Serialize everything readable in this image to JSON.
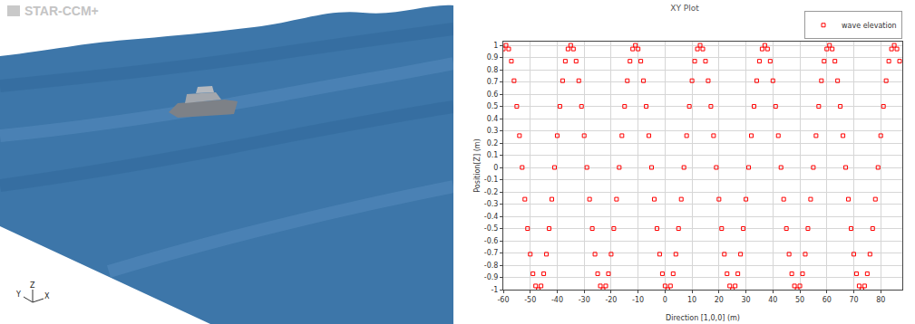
{
  "scene": {
    "logo": "STAR-CCM+",
    "axes_labels": {
      "x": "X",
      "y": "Y",
      "z": "Z"
    }
  },
  "chart_data": {
    "type": "scatter",
    "title": "XY Plot",
    "x_label": "Direction [1,0,0] (m)",
    "y_label": "Position[Z] (m)",
    "series": [
      {
        "name": "wave elevation",
        "color": "#ff0000",
        "marker": "square",
        "x": [
          -60,
          -59,
          -58,
          -57,
          -56,
          -55,
          -54,
          -53,
          -52,
          -51,
          -50,
          -49,
          -48,
          -47,
          -46,
          -45,
          -44,
          -43,
          -42,
          -41,
          -40,
          -39,
          -38,
          -37,
          -36,
          -35,
          -34,
          -33,
          -32,
          -31,
          -30,
          -29,
          -28,
          -27,
          -26,
          -25,
          -24,
          -23,
          -22,
          -21,
          -20,
          -19,
          -18,
          -17,
          -16,
          -15,
          -14,
          -13,
          -12,
          -11,
          -10,
          -9,
          -8,
          -7,
          -6,
          -5,
          -4,
          -3,
          -2,
          -1,
          0,
          1,
          2,
          3,
          4,
          5,
          6,
          7,
          8,
          9,
          10,
          11,
          12,
          13,
          14,
          15,
          16,
          17,
          18,
          19,
          20,
          21,
          22,
          23,
          24,
          25,
          26,
          27,
          28,
          29,
          30,
          31,
          32,
          33,
          34,
          35,
          36,
          37,
          38,
          39,
          40,
          41,
          42,
          43,
          44,
          45,
          46,
          47,
          48,
          49,
          50,
          51,
          52,
          53,
          54,
          55,
          56,
          57,
          58,
          59,
          60,
          61,
          62,
          63,
          64,
          65,
          66,
          67,
          68,
          69,
          70,
          71,
          72,
          73,
          74,
          75,
          76,
          77,
          78,
          79,
          80,
          81,
          82,
          83,
          84,
          85,
          86,
          87
        ],
        "values": [
          0.97,
          1,
          0.97,
          0.87,
          0.71,
          0.5,
          0.26,
          0,
          -0.26,
          -0.5,
          -0.71,
          -0.87,
          -0.97,
          -1,
          -0.97,
          -0.87,
          -0.71,
          -0.5,
          -0.26,
          0,
          0.26,
          0.5,
          0.71,
          0.87,
          0.97,
          1,
          0.97,
          0.87,
          0.71,
          0.5,
          0.26,
          0,
          -0.26,
          -0.5,
          -0.71,
          -0.87,
          -0.97,
          -1,
          -0.97,
          -0.87,
          -0.71,
          -0.5,
          -0.26,
          0,
          0.26,
          0.5,
          0.71,
          0.87,
          0.97,
          1,
          0.97,
          0.87,
          0.71,
          0.5,
          0.26,
          0,
          -0.26,
          -0.5,
          -0.71,
          -0.87,
          -0.97,
          -1,
          -0.97,
          -0.87,
          -0.71,
          -0.5,
          -0.26,
          0,
          0.26,
          0.5,
          0.71,
          0.87,
          0.97,
          1,
          0.97,
          0.87,
          0.71,
          0.5,
          0.26,
          0,
          -0.26,
          -0.5,
          -0.71,
          -0.87,
          -0.97,
          -1,
          -0.97,
          -0.87,
          -0.71,
          -0.5,
          -0.26,
          0,
          0.26,
          0.5,
          0.71,
          0.87,
          0.97,
          1,
          0.97,
          0.87,
          0.71,
          0.5,
          0.26,
          0,
          -0.26,
          -0.5,
          -0.71,
          -0.87,
          -0.97,
          -1,
          -0.97,
          -0.87,
          -0.71,
          -0.5,
          -0.26,
          0,
          0.26,
          0.5,
          0.71,
          0.87,
          0.97,
          1,
          0.97,
          0.87,
          0.71,
          0.5,
          0.26,
          0,
          -0.26,
          -0.5,
          -0.71,
          -0.87,
          -0.97,
          -1,
          -0.97,
          -0.87,
          -0.71,
          -0.5,
          -0.26,
          0,
          0.26,
          0.5,
          0.71,
          0.87,
          0.97,
          1,
          0.97,
          0.87
        ]
      }
    ],
    "xlim": [
      -60,
      88
    ],
    "xticks": [
      -60,
      -50,
      -40,
      -30,
      -20,
      -10,
      0,
      10,
      20,
      30,
      40,
      50,
      60,
      70,
      80
    ],
    "ylim": [
      -1,
      1.03
    ],
    "yticks": [
      -1,
      -0.9,
      -0.8,
      -0.7,
      -0.6,
      -0.5,
      -0.4,
      -0.3,
      -0.2,
      -0.1,
      0,
      0.1,
      0.2,
      0.3,
      0.4,
      0.5,
      0.6,
      0.7,
      0.8,
      0.9,
      1
    ],
    "grid": true,
    "legend": "top right"
  }
}
